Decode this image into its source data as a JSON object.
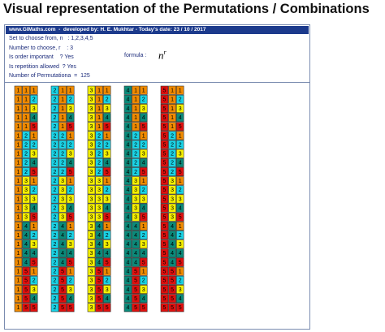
{
  "title": "Visual representation of the Permutations / Combinations",
  "banner": "www.GIMaths.com  -  developed by: H. E. Mukhtar - Today's date: 23 / 10 / 2017",
  "info_lines": [
    "Set to choose from, n   : 1,2,3,4,5",
    "Number to choose, r    : 3",
    "Is order important    ? Yes",
    "Is repetition allowed  ? Yes",
    "Number of Permutationa  =  125"
  ],
  "formula": {
    "label": "formula :",
    "base": "n",
    "exponent": "r"
  },
  "digit_colors": {
    "1": "#f08a00",
    "2": "#19d3e6",
    "3": "#f5f000",
    "4": "#0a8a7a",
    "5": "#e0100e"
  },
  "permutations": [
    [
      1,
      1,
      1
    ],
    [
      1,
      1,
      2
    ],
    [
      1,
      1,
      3
    ],
    [
      1,
      1,
      4
    ],
    [
      1,
      1,
      5
    ],
    [
      1,
      2,
      1
    ],
    [
      1,
      2,
      2
    ],
    [
      1,
      2,
      3
    ],
    [
      1,
      2,
      4
    ],
    [
      1,
      2,
      5
    ],
    [
      1,
      3,
      1
    ],
    [
      1,
      3,
      2
    ],
    [
      1,
      3,
      3
    ],
    [
      1,
      3,
      4
    ],
    [
      1,
      3,
      5
    ],
    [
      1,
      4,
      1
    ],
    [
      1,
      4,
      2
    ],
    [
      1,
      4,
      3
    ],
    [
      1,
      4,
      4
    ],
    [
      1,
      4,
      5
    ],
    [
      1,
      5,
      1
    ],
    [
      1,
      5,
      2
    ],
    [
      1,
      5,
      3
    ],
    [
      1,
      5,
      4
    ],
    [
      1,
      5,
      5
    ],
    [
      2,
      1,
      1
    ],
    [
      2,
      1,
      2
    ],
    [
      2,
      1,
      3
    ],
    [
      2,
      1,
      4
    ],
    [
      2,
      1,
      5
    ],
    [
      2,
      2,
      1
    ],
    [
      2,
      2,
      2
    ],
    [
      2,
      2,
      3
    ],
    [
      2,
      2,
      4
    ],
    [
      2,
      2,
      5
    ],
    [
      2,
      3,
      1
    ],
    [
      2,
      3,
      2
    ],
    [
      2,
      3,
      3
    ],
    [
      2,
      3,
      4
    ],
    [
      2,
      3,
      5
    ],
    [
      2,
      4,
      1
    ],
    [
      2,
      4,
      2
    ],
    [
      2,
      4,
      3
    ],
    [
      2,
      4,
      4
    ],
    [
      2,
      4,
      5
    ],
    [
      2,
      5,
      1
    ],
    [
      2,
      5,
      2
    ],
    [
      2,
      5,
      3
    ],
    [
      2,
      5,
      4
    ],
    [
      2,
      5,
      5
    ],
    [
      3,
      1,
      1
    ],
    [
      3,
      1,
      2
    ],
    [
      3,
      1,
      3
    ],
    [
      3,
      1,
      4
    ],
    [
      3,
      1,
      5
    ],
    [
      3,
      2,
      1
    ],
    [
      3,
      2,
      2
    ],
    [
      3,
      2,
      3
    ],
    [
      3,
      2,
      4
    ],
    [
      3,
      2,
      5
    ],
    [
      3,
      3,
      1
    ],
    [
      3,
      3,
      2
    ],
    [
      3,
      3,
      3
    ],
    [
      3,
      3,
      4
    ],
    [
      3,
      3,
      5
    ],
    [
      3,
      4,
      1
    ],
    [
      3,
      4,
      2
    ],
    [
      3,
      4,
      3
    ],
    [
      3,
      4,
      4
    ],
    [
      3,
      4,
      5
    ],
    [
      3,
      5,
      1
    ],
    [
      3,
      5,
      2
    ],
    [
      3,
      5,
      3
    ],
    [
      3,
      5,
      4
    ],
    [
      3,
      5,
      5
    ],
    [
      4,
      1,
      1
    ],
    [
      4,
      1,
      2
    ],
    [
      4,
      1,
      3
    ],
    [
      4,
      1,
      4
    ],
    [
      4,
      1,
      5
    ],
    [
      4,
      2,
      1
    ],
    [
      4,
      2,
      2
    ],
    [
      4,
      2,
      3
    ],
    [
      4,
      2,
      4
    ],
    [
      4,
      2,
      5
    ],
    [
      4,
      3,
      1
    ],
    [
      4,
      3,
      2
    ],
    [
      4,
      3,
      3
    ],
    [
      4,
      3,
      4
    ],
    [
      4,
      3,
      5
    ],
    [
      4,
      4,
      1
    ],
    [
      4,
      4,
      2
    ],
    [
      4,
      4,
      3
    ],
    [
      4,
      4,
      4
    ],
    [
      4,
      4,
      5
    ],
    [
      4,
      5,
      1
    ],
    [
      4,
      5,
      2
    ],
    [
      4,
      5,
      3
    ],
    [
      4,
      5,
      4
    ],
    [
      4,
      5,
      5
    ],
    [
      5,
      1,
      1
    ],
    [
      5,
      1,
      2
    ],
    [
      5,
      1,
      3
    ],
    [
      5,
      1,
      4
    ],
    [
      5,
      1,
      5
    ],
    [
      5,
      2,
      1
    ],
    [
      5,
      2,
      2
    ],
    [
      5,
      2,
      3
    ],
    [
      5,
      2,
      4
    ],
    [
      5,
      2,
      5
    ],
    [
      5,
      3,
      1
    ],
    [
      5,
      3,
      2
    ],
    [
      5,
      3,
      3
    ],
    [
      5,
      3,
      4
    ],
    [
      5,
      3,
      5
    ],
    [
      5,
      4,
      1
    ],
    [
      5,
      4,
      2
    ],
    [
      5,
      4,
      3
    ],
    [
      5,
      4,
      4
    ],
    [
      5,
      4,
      5
    ],
    [
      5,
      5,
      1
    ],
    [
      5,
      5,
      2
    ],
    [
      5,
      5,
      3
    ],
    [
      5,
      5,
      4
    ],
    [
      5,
      5,
      5
    ]
  ]
}
